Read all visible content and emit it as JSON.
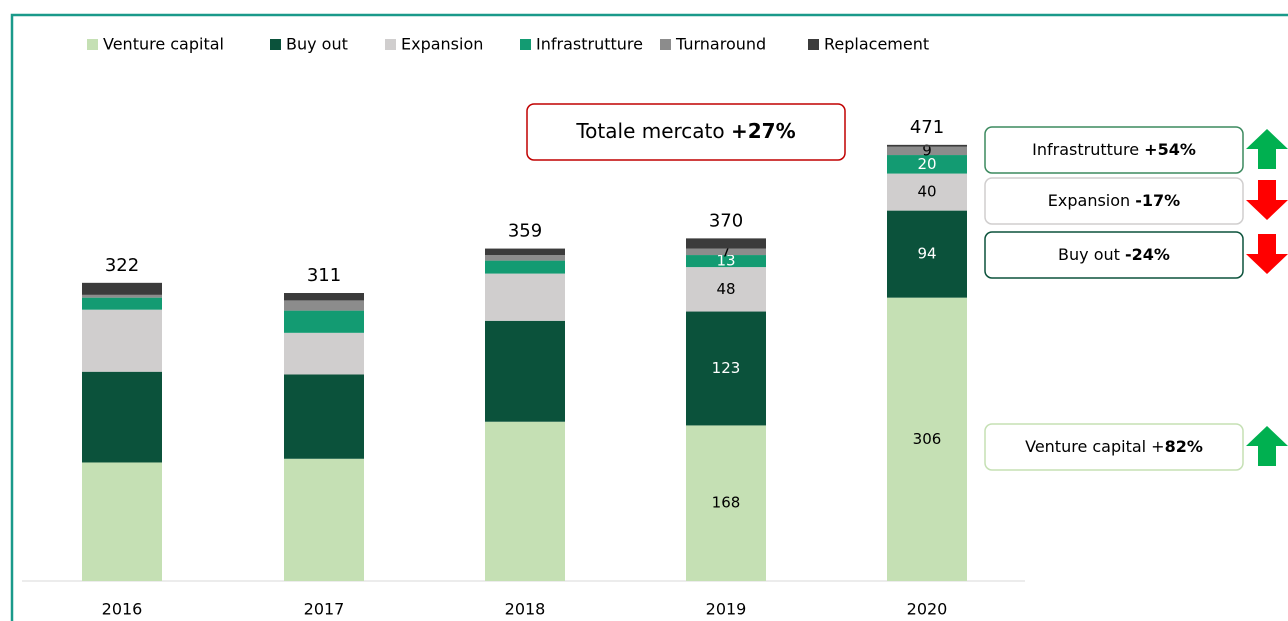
{
  "chart_data": {
    "type": "stacked_bar",
    "categories": [
      "2016",
      "2017",
      "2018",
      "2019",
      "2020"
    ],
    "series": [
      {
        "name": "Venture capital",
        "color": "#c5e0b4",
        "values": [
          128,
          132,
          172,
          168,
          306
        ],
        "value_labels": [
          null,
          null,
          null,
          "168",
          "306"
        ]
      },
      {
        "name": "Buy out",
        "color": "#0b523b",
        "values": [
          98,
          91,
          109,
          123,
          94
        ],
        "value_labels": [
          null,
          null,
          null,
          "123",
          "94"
        ]
      },
      {
        "name": "Expansion",
        "color": "#d0cece",
        "values": [
          67,
          45,
          51,
          48,
          40
        ],
        "value_labels": [
          null,
          null,
          null,
          "48",
          "40"
        ]
      },
      {
        "name": "Infrastrutture",
        "color": "#139b72",
        "values": [
          13,
          24,
          14,
          13,
          20
        ],
        "value_labels": [
          null,
          null,
          null,
          "13",
          "20"
        ]
      },
      {
        "name": "Turnaround",
        "color": "#8c8c8c",
        "values": [
          3,
          11,
          6,
          7,
          9
        ],
        "value_labels": [
          null,
          null,
          null,
          "7",
          "9"
        ]
      },
      {
        "name": "Replacement",
        "color": "#3b3b3b",
        "values": [
          13,
          8,
          7,
          11,
          2
        ],
        "value_labels": [
          null,
          null,
          null,
          null,
          null
        ]
      }
    ],
    "totals": [
      322,
      311,
      359,
      370,
      471
    ],
    "ylim": [
      0,
      500
    ],
    "headline": {
      "label": "Totale mercato ",
      "change": "+27%",
      "color": "#c00000"
    },
    "side_notes": [
      {
        "label": "Infrastrutture ",
        "change": "+54%",
        "arrow": "up",
        "color": "#3c8a5f"
      },
      {
        "label": "Expansion ",
        "change": "-17%",
        "arrow": "down",
        "color": "#d0cece"
      },
      {
        "label": "Buy out ",
        "change": "-24%",
        "arrow": "down",
        "color": "#0b523b"
      },
      {
        "label": "Venture capital +",
        "change": "82%",
        "arrow": "up",
        "color": "#c5e0b4"
      }
    ]
  }
}
